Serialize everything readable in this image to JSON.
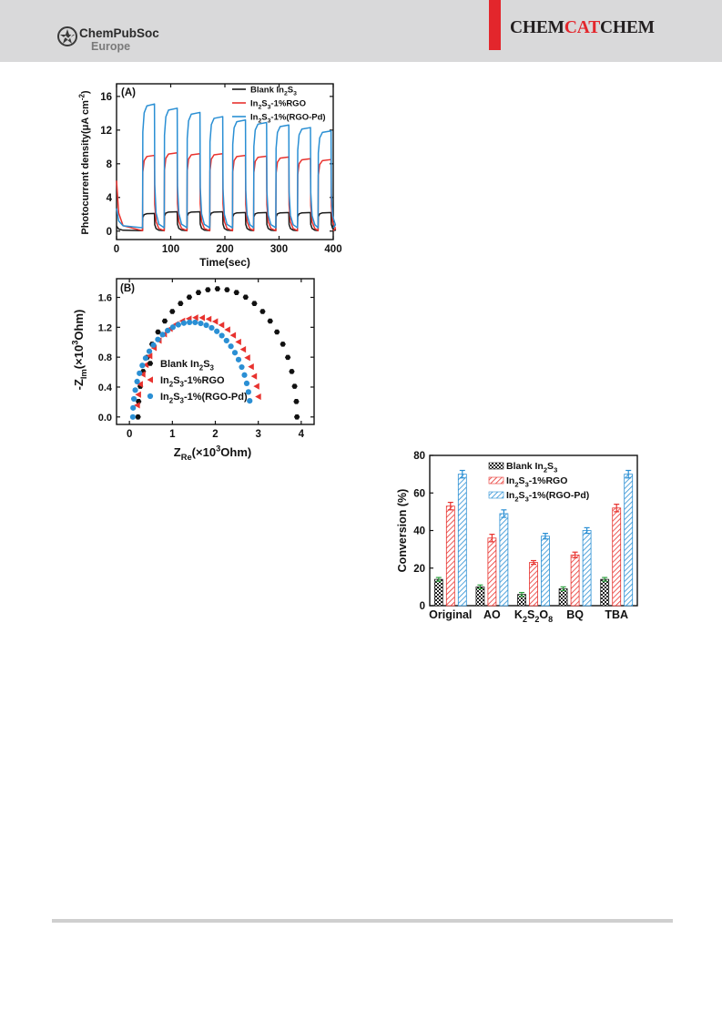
{
  "header": {
    "publisher_name": "ChemPubSoc",
    "publisher_sub": "Europe",
    "journal_part1": "CHEM",
    "journal_part2": "CAT",
    "journal_part3": "CHEM",
    "colors": {
      "band": "#d9d9da",
      "accent": "#e3262c"
    }
  },
  "chart_data": [
    {
      "id": "A",
      "type": "line",
      "panel_label": "(A)",
      "xlabel": "Time(sec)",
      "ylabel_parts": [
        "Photocurrent density(",
        "μ",
        "A cm",
        "-2",
        ")"
      ],
      "xlim": [
        0,
        400
      ],
      "ylim": [
        -1,
        17.5
      ],
      "xticks": [
        0,
        100,
        200,
        300,
        400
      ],
      "yticks": [
        0,
        4,
        8,
        12,
        16
      ],
      "legend_position": "top-right",
      "on_periods": [
        [
          48,
          70
        ],
        [
          88,
          112
        ],
        [
          130,
          154
        ],
        [
          172,
          196
        ],
        [
          214,
          238
        ],
        [
          253,
          277
        ],
        [
          294,
          318
        ],
        [
          334,
          358
        ],
        [
          372,
          396
        ]
      ],
      "series": [
        {
          "name": "Blank In2S3",
          "legend": [
            "Blank In",
            "2",
            "S",
            "3",
            ""
          ],
          "color": "#1a1a1a",
          "dark": 0.05,
          "initial_spike": 0.6,
          "peaks": [
            2.1,
            2.3,
            2.3,
            2.3,
            2.2,
            2.2,
            2.2,
            2.2,
            2.2
          ]
        },
        {
          "name": "In2S3-1%RGO",
          "legend": [
            "In",
            "2",
            "S",
            "3",
            "-1%RGO"
          ],
          "color": "#e8322e",
          "dark": 0.05,
          "initial_spike": 6.0,
          "peaks": [
            9.0,
            9.3,
            9.2,
            9.2,
            9.0,
            8.9,
            8.8,
            8.6,
            8.5
          ]
        },
        {
          "name": "In2S3-1%(RGO-Pd)",
          "legend": [
            "In",
            "2",
            "S",
            "3",
            "-1%(RGO-Pd)"
          ],
          "color": "#2a8fd4",
          "dark": 0.4,
          "initial_spike": 2.7,
          "peaks": [
            15.1,
            14.6,
            14.1,
            13.6,
            13.2,
            12.9,
            12.6,
            12.3,
            11.9
          ]
        }
      ]
    },
    {
      "id": "B",
      "type": "scatter",
      "panel_label": "(B)",
      "xlabel_parts": [
        "Z",
        "Re",
        "(×10",
        "3",
        "Ohm)"
      ],
      "ylabel_parts": [
        "-Z",
        "Im",
        "(×10",
        "3",
        "Ohm)"
      ],
      "xlim": [
        -0.3,
        4.3
      ],
      "ylim": [
        -0.1,
        1.85
      ],
      "xticks": [
        0,
        1,
        2,
        3,
        4
      ],
      "yticks": [
        0.0,
        0.4,
        0.8,
        1.2,
        1.6
      ],
      "ytick_labels": [
        "0.0",
        "0.4",
        "0.8",
        "1.2",
        "1.6"
      ],
      "legend_position": "lower-left",
      "series": [
        {
          "name": "Blank In2S3",
          "legend": [
            "Blank In",
            "2",
            "S",
            "3",
            ""
          ],
          "color": "#111111",
          "marker": "hexagon",
          "center": 2.05,
          "radius": 1.85,
          "yscale": 0.927,
          "start_x": 0.2,
          "end_x": 3.9,
          "points": 27
        },
        {
          "name": "In2S3-1%RGO",
          "legend": [
            "In",
            "2",
            "S",
            "3",
            "-1%RGO"
          ],
          "color": "#e8322e",
          "marker": "triangle-left",
          "center": 1.6,
          "radius": 1.43,
          "yscale": 0.93,
          "start_x": 0.18,
          "end_x": 3.0,
          "points": 27
        },
        {
          "name": "In2S3-1%(RGO-Pd)",
          "legend": [
            "In",
            "2",
            "S",
            "3",
            "-1%(RGO-Pd)"
          ],
          "color": "#2a8fd4",
          "marker": "circle",
          "center": 1.45,
          "radius": 1.37,
          "yscale": 0.925,
          "start_x": 0.08,
          "end_x": 2.8,
          "points": 32
        }
      ]
    },
    {
      "id": "C",
      "type": "bar",
      "ylabel": "Conversion (%)",
      "ylim": [
        0,
        80
      ],
      "yticks": [
        0,
        20,
        40,
        60,
        80
      ],
      "legend_position": "top-right",
      "categories": [
        "Original",
        "AO",
        "K2S2O8",
        "BQ",
        "TBA"
      ],
      "category_labels": [
        [
          "Original",
          "",
          "",
          "",
          "",
          ""
        ],
        [
          "AO",
          "",
          "",
          "",
          "",
          ""
        ],
        [
          "K",
          "2",
          "S",
          "2",
          "O",
          "8"
        ],
        [
          "BQ",
          "",
          "",
          "",
          "",
          ""
        ],
        [
          "TBA",
          "",
          "",
          "",
          "",
          ""
        ]
      ],
      "series": [
        {
          "name": "Blank In2S3",
          "legend": [
            "Blank In",
            "2",
            "S",
            "3",
            ""
          ],
          "color": "#222222",
          "pattern": "checker",
          "errorbar_color": "#2e9e3e",
          "values": [
            14,
            10,
            6,
            9,
            14
          ],
          "errors": [
            1,
            1,
            1,
            1,
            1
          ]
        },
        {
          "name": "In2S3-1%RGO",
          "legend": [
            "In",
            "2",
            "S",
            "3",
            "-1%RGO"
          ],
          "color": "#e8322e",
          "pattern": "hatch",
          "errorbar_color": "#e8322e",
          "values": [
            53,
            36,
            23,
            27,
            52
          ],
          "errors": [
            2,
            2,
            1,
            1.5,
            2
          ]
        },
        {
          "name": "In2S3-1%(RGO-Pd)",
          "legend": [
            "In",
            "2",
            "S",
            "3",
            "-1%(RGO-Pd)"
          ],
          "color": "#2a8fd4",
          "pattern": "hatch",
          "errorbar_color": "#2a8fd4",
          "values": [
            70,
            49,
            37,
            40,
            70
          ],
          "errors": [
            2,
            2,
            1.5,
            1.5,
            2
          ]
        }
      ]
    }
  ]
}
